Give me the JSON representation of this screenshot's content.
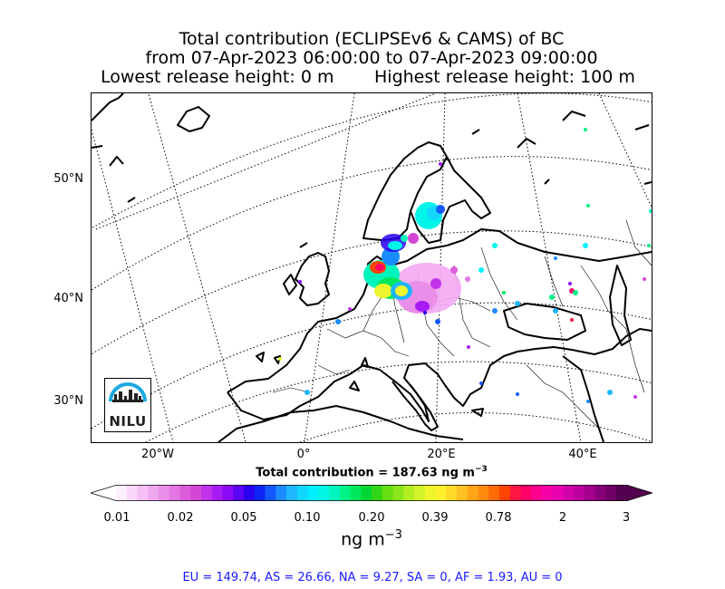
{
  "title": {
    "line1": "Total contribution (ECLIPSEv6 & CAMS) of BC",
    "line2": "from 07-Apr-2023 06:00:00 to 07-Apr-2023 09:00:00",
    "lowest": "Lowest release height: 0 m",
    "highest": "Highest release height: 100 m"
  },
  "map": {
    "lat_labels": [
      "50°N",
      "40°N",
      "30°N"
    ],
    "lon_labels": [
      "20°W",
      "0°",
      "20°E",
      "40°E"
    ],
    "logo_text": "NILU"
  },
  "total_contribution": "Total contribution = 187.63 ng m",
  "total_exponent": "−3",
  "colorbar": {
    "ticks": [
      "0.01",
      "0.02",
      "0.05",
      "0.10",
      "0.20",
      "0.39",
      "0.78",
      "2",
      "3"
    ],
    "unit": "ng m",
    "unit_exponent": "−3",
    "colors": [
      "#fff0ff",
      "#fbd7fb",
      "#f6c0f6",
      "#efa8ef",
      "#e98fe9",
      "#e276e2",
      "#dc5ddc",
      "#d447d4",
      "#c033e8",
      "#a71cf5",
      "#8a0bf8",
      "#5c04f5",
      "#2a00f0",
      "#0e26f5",
      "#1359fb",
      "#1a8cff",
      "#1fb5ff",
      "#13d6ff",
      "#00eeff",
      "#00f7e8",
      "#00f5bd",
      "#00f287",
      "#00e85d",
      "#00d633",
      "#33d617",
      "#66de12",
      "#8ce61c",
      "#b3ee22",
      "#d4f22b",
      "#eef52d",
      "#fff02d",
      "#ffd92a",
      "#ffc021",
      "#ffa516",
      "#ff8b0e",
      "#ff6a07",
      "#ff4500",
      "#ff1744",
      "#ff006b",
      "#ff0090",
      "#f500a6",
      "#e600b0",
      "#d100a8",
      "#bb009d",
      "#a3008d",
      "#88007a",
      "#6e0066",
      "#55004f"
    ],
    "under_color": "#ffffff",
    "over_color": "#55004f"
  },
  "footer": "EU = 149.74,  AS = 26.66,  NA = 9.27,  SA = 0,  AF = 1.93,  AU = 0"
}
